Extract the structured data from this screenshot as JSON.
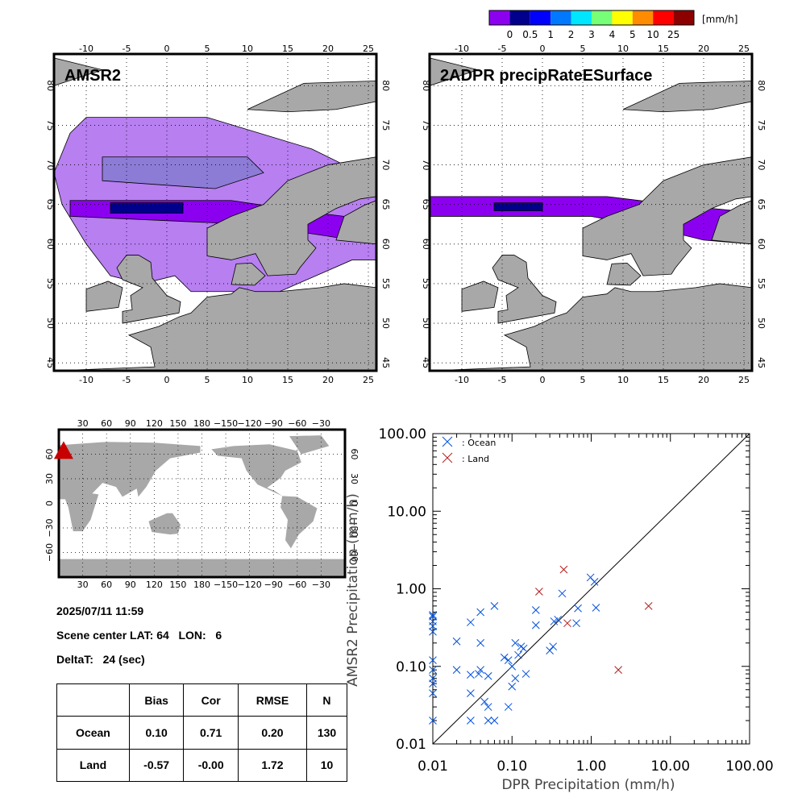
{
  "colorbar": {
    "ticks": [
      "0",
      "0.5",
      "1",
      "2",
      "3",
      "4",
      "5",
      "10",
      "25"
    ],
    "unit": "[mm/h]",
    "colors": [
      "#8c00f0",
      "#00008c",
      "#0000ff",
      "#0078ff",
      "#00e6ff",
      "#78ff78",
      "#ffff00",
      "#ff8c00",
      "#ff0000",
      "#8c0000"
    ]
  },
  "maps": {
    "left_title": "AMSR2",
    "right_title": "2ADPR precipRateESurface",
    "lon_ticks": [
      "-10",
      "-5",
      "0",
      "5",
      "10",
      "15",
      "20",
      "25"
    ],
    "lat_ticks": [
      "45",
      "50",
      "55",
      "60",
      "65",
      "70",
      "75",
      "80"
    ],
    "land_color": "#a8a8a8",
    "swath_light_color": "#b77ff0",
    "swath_gray_color": "#8c7cd6",
    "swath_dark_color": "#8c00f0"
  },
  "globe": {
    "lon_ticks": [
      "30",
      "60",
      "90",
      "120",
      "150",
      "180",
      "−150",
      "−120",
      "−90",
      "−60",
      "−30"
    ],
    "lat_ticks": [
      "60",
      "30",
      "0",
      "−30",
      "−60"
    ],
    "marker_color": "#c80000"
  },
  "info": {
    "datetime": "2025/07/11 11:59",
    "scene_center": "Scene center LAT: 64   LON:   6",
    "delta_t": "DeltaT:   24 (sec)"
  },
  "stats_table": {
    "headers": [
      "",
      "Bias",
      "Cor",
      "RMSE",
      "N"
    ],
    "rows": [
      [
        "Ocean",
        "0.10",
        "0.71",
        "0.20",
        "130"
      ],
      [
        "Land",
        "-0.57",
        "-0.00",
        "1.72",
        "10"
      ]
    ]
  },
  "chart_data": {
    "type": "scatter",
    "title": "",
    "xlabel": "DPR Precipitation (mm/h)",
    "ylabel": "AMSR2 Precipitation (mm/h)",
    "xscale": "log",
    "yscale": "log",
    "xlim": [
      0.01,
      100
    ],
    "ylim": [
      0.01,
      100
    ],
    "x_tick_labels": [
      "0.01",
      "0.10",
      "1.00",
      "10.00",
      "100.00"
    ],
    "y_tick_labels": [
      "0.01",
      "0.10",
      "1.00",
      "10.00",
      "100.00"
    ],
    "reference_line": "1:1",
    "legend_position": "top-left",
    "series": [
      {
        "name": ": Ocean",
        "color": "#0050dc",
        "marker": "x",
        "points": [
          [
            0.01,
            0.02
          ],
          [
            0.01,
            0.045
          ],
          [
            0.01,
            0.06
          ],
          [
            0.01,
            0.07
          ],
          [
            0.01,
            0.09
          ],
          [
            0.01,
            0.12
          ],
          [
            0.01,
            0.28
          ],
          [
            0.01,
            0.33
          ],
          [
            0.01,
            0.38
          ],
          [
            0.01,
            0.44
          ],
          [
            0.01,
            0.46
          ],
          [
            0.02,
            0.09
          ],
          [
            0.02,
            0.21
          ],
          [
            0.03,
            0.02
          ],
          [
            0.03,
            0.045
          ],
          [
            0.03,
            0.078
          ],
          [
            0.03,
            0.37
          ],
          [
            0.038,
            0.08
          ],
          [
            0.04,
            0.09
          ],
          [
            0.04,
            0.2
          ],
          [
            0.04,
            0.5
          ],
          [
            0.045,
            0.035
          ],
          [
            0.05,
            0.02
          ],
          [
            0.05,
            0.03
          ],
          [
            0.05,
            0.075
          ],
          [
            0.06,
            0.02
          ],
          [
            0.06,
            0.6
          ],
          [
            0.08,
            0.13
          ],
          [
            0.09,
            0.03
          ],
          [
            0.09,
            0.12
          ],
          [
            0.1,
            0.055
          ],
          [
            0.1,
            0.1
          ],
          [
            0.11,
            0.07
          ],
          [
            0.11,
            0.2
          ],
          [
            0.12,
            0.14
          ],
          [
            0.13,
            0.18
          ],
          [
            0.14,
            0.17
          ],
          [
            0.15,
            0.08
          ],
          [
            0.2,
            0.34
          ],
          [
            0.2,
            0.53
          ],
          [
            0.3,
            0.16
          ],
          [
            0.33,
            0.18
          ],
          [
            0.34,
            0.38
          ],
          [
            0.38,
            0.4
          ],
          [
            0.43,
            0.87
          ],
          [
            0.65,
            0.36
          ],
          [
            0.68,
            0.56
          ],
          [
            0.98,
            1.4
          ],
          [
            1.1,
            1.23
          ],
          [
            1.15,
            0.57
          ]
        ]
      },
      {
        "name": ": Land",
        "color": "#b41e1e",
        "marker": "x",
        "points": [
          [
            0.22,
            0.92
          ],
          [
            0.45,
            1.77
          ],
          [
            0.5,
            0.36
          ],
          [
            2.2,
            0.09
          ],
          [
            5.3,
            0.6
          ]
        ]
      }
    ]
  }
}
